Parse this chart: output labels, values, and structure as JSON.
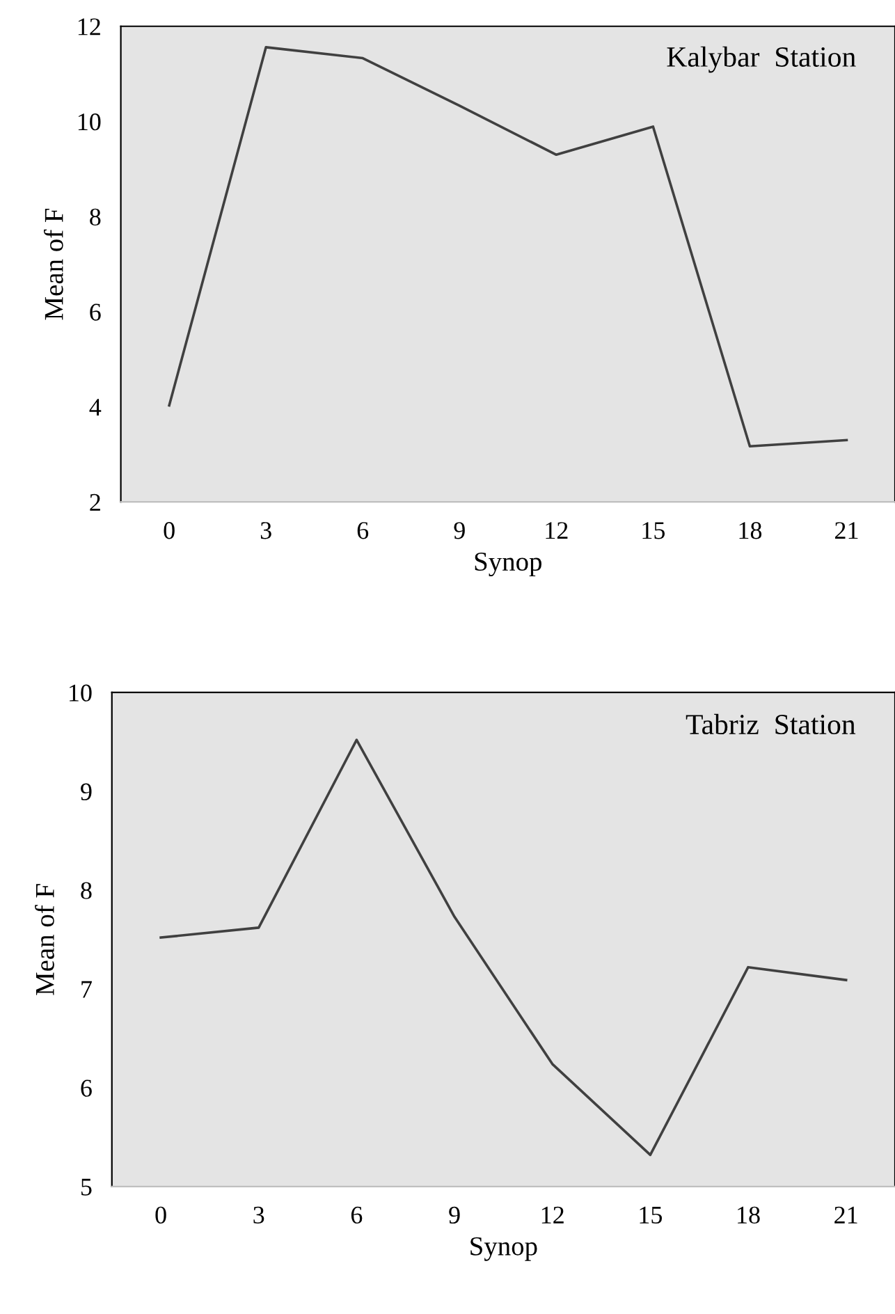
{
  "chart_data": [
    {
      "type": "line",
      "xlabel": "Synop",
      "ylabel": "Mean of F",
      "annotations": [
        "Kalybar  Station"
      ],
      "categories": [
        "0",
        "3",
        "6",
        "9",
        "12",
        "15",
        "18",
        "21"
      ],
      "series": [
        {
          "color": "#404040",
          "values": [
            4.03,
            11.56,
            11.33,
            10.33,
            9.3,
            9.89,
            3.17,
            3.3
          ]
        }
      ],
      "ylim": [
        2,
        12
      ],
      "yticks": [
        2,
        4,
        6,
        8,
        10,
        12
      ],
      "grid": false,
      "marker": "none",
      "line_style": "solid"
    },
    {
      "type": "line",
      "xlabel": "Synop",
      "ylabel": "Mean of F",
      "annotations": [
        "Tabriz  Station"
      ],
      "categories": [
        "0",
        "3",
        "6",
        "9",
        "12",
        "15",
        "18",
        "21"
      ],
      "series": [
        {
          "color": "#404040",
          "values": [
            7.52,
            7.62,
            9.52,
            7.73,
            6.24,
            5.32,
            7.22,
            7.09
          ]
        }
      ],
      "ylim": [
        5,
        10
      ],
      "yticks": [
        5,
        6,
        7,
        8,
        9,
        10
      ],
      "grid": false,
      "marker": "none",
      "line_style": "solid"
    }
  ]
}
